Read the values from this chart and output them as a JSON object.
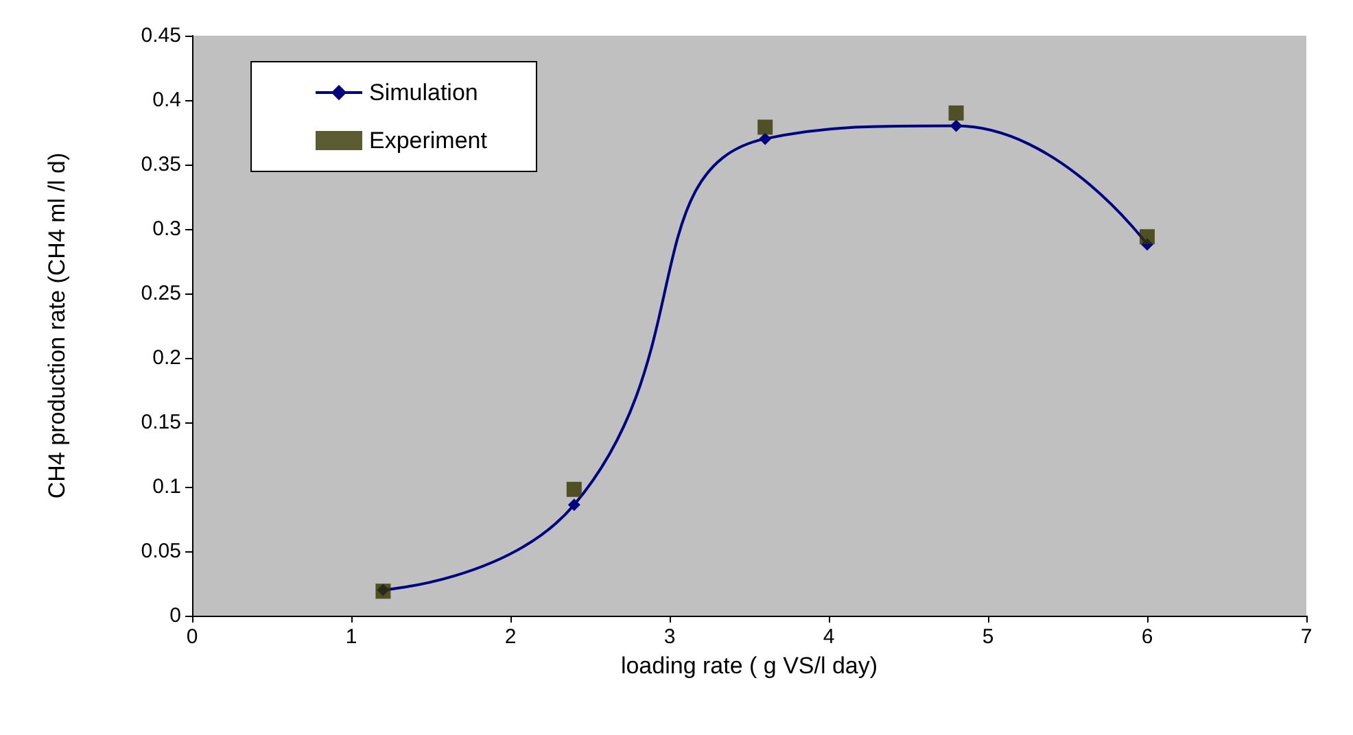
{
  "chart_data": {
    "type": "line",
    "xlabel": "loading rate ( g VS/l day)",
    "ylabel": "CH4 production rate (CH4 ml /l d)",
    "x": [
      1.2,
      2.4,
      3.6,
      4.8,
      6
    ],
    "series": [
      {
        "name": "Simulation",
        "color": "#000080",
        "marker": "diamond",
        "values": [
          0.02,
          0.086,
          0.37,
          0.38,
          0.288
        ]
      },
      {
        "name": "Experiment",
        "type": "scatter",
        "color": "#333300",
        "marker": "square",
        "values": [
          0.019,
          0.098,
          0.379,
          0.39,
          0.294
        ]
      }
    ],
    "xlim": [
      0,
      7
    ],
    "xticks": [
      0,
      1,
      2,
      3,
      4,
      5,
      6,
      7
    ],
    "ylim": [
      0,
      0.45
    ],
    "yticks": [
      0,
      0.05,
      0.1,
      0.15,
      0.2,
      0.25,
      0.3,
      0.35,
      0.4,
      0.45
    ],
    "grid": false,
    "legend": "top left"
  }
}
